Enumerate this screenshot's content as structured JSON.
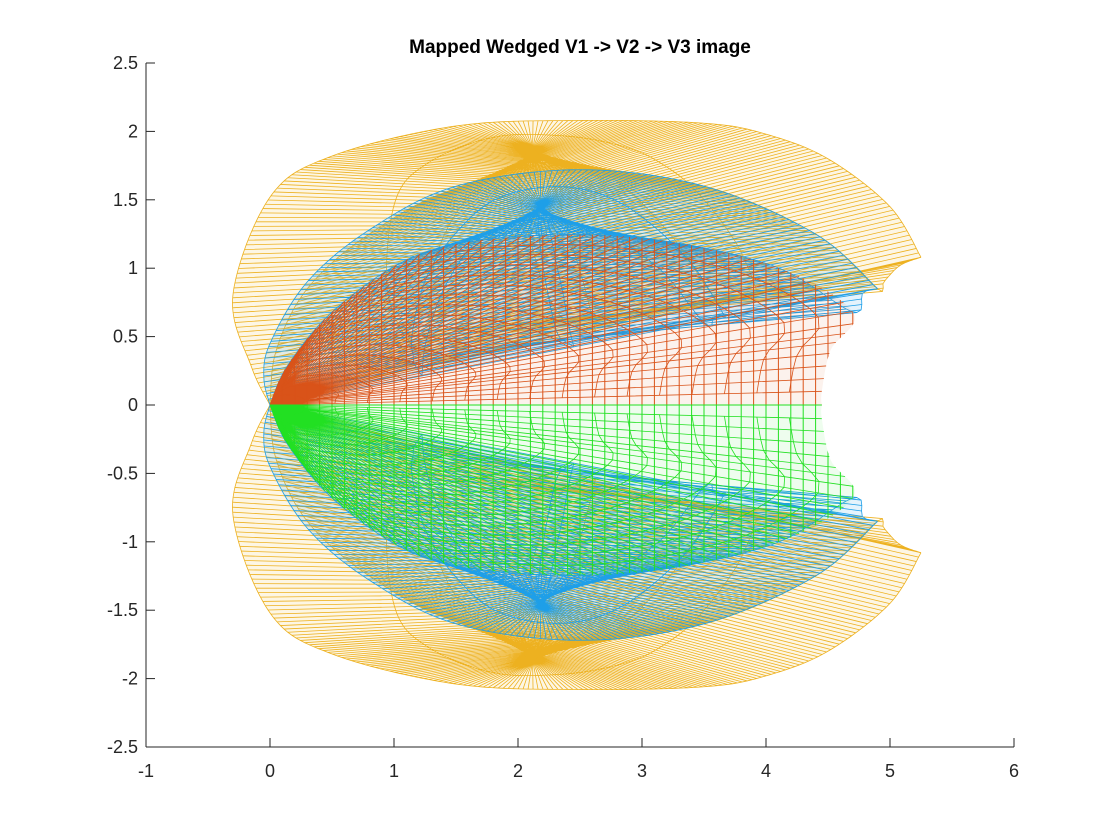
{
  "chart_data": {
    "type": "line",
    "title": "Mapped Wedged V1 -> V2 -> V3 image",
    "xlabel": "",
    "ylabel": "",
    "xlim": [
      -1,
      6
    ],
    "ylim": [
      -2.5,
      2.5
    ],
    "xticks": [
      "-1",
      "0",
      "1",
      "2",
      "3",
      "4",
      "5",
      "6"
    ],
    "yticks": [
      "-2.5",
      "-2",
      "-1.5",
      "-1",
      "-0.5",
      "0",
      "0.5",
      "1",
      "1.5",
      "2",
      "2.5"
    ],
    "grid": false,
    "colors": {
      "orange": "#EDB120",
      "blue": "#1E9FE8",
      "red": "#D95319",
      "green": "#22E022",
      "axis": "#262626"
    },
    "series": [
      {
        "color": "orange",
        "region": "outer band (V3)",
        "outer_boundary": [
          [
            5.25,
            1.08
          ],
          [
            5.0,
            1.45
          ],
          [
            4.5,
            1.8
          ],
          [
            4.0,
            1.98
          ],
          [
            3.5,
            2.06
          ],
          [
            2.5,
            2.08
          ],
          [
            1.5,
            2.04
          ],
          [
            0.5,
            1.82
          ],
          [
            0.0,
            1.52
          ],
          [
            -0.3,
            0.8
          ],
          [
            -0.15,
            0.28
          ],
          [
            0.0,
            0.0
          ]
        ],
        "inner_boundary": [
          [
            5.25,
            1.08
          ],
          [
            5.08,
            1.02
          ],
          [
            4.95,
            0.9
          ],
          [
            4.9,
            0.85
          ],
          [
            4.4,
            1.25
          ],
          [
            3.5,
            1.6
          ],
          [
            2.5,
            1.7
          ],
          [
            1.5,
            1.58
          ],
          [
            0.8,
            1.25
          ],
          [
            0.3,
            0.85
          ],
          [
            0.05,
            0.4
          ],
          [
            0.0,
            0.0
          ]
        ]
      },
      {
        "color": "blue",
        "region": "middle band (V2)",
        "outer_boundary": [
          [
            4.9,
            0.85
          ],
          [
            4.4,
            1.25
          ],
          [
            3.5,
            1.6
          ],
          [
            2.5,
            1.72
          ],
          [
            1.5,
            1.6
          ],
          [
            0.8,
            1.28
          ],
          [
            0.3,
            0.9
          ],
          [
            0.0,
            0.45
          ],
          [
            -0.05,
            0.2
          ],
          [
            0.0,
            0.0
          ]
        ],
        "inner_boundary": [
          [
            4.9,
            0.85
          ],
          [
            4.78,
            0.82
          ],
          [
            4.7,
            0.68
          ],
          [
            4.05,
            1.02
          ],
          [
            3.0,
            1.22
          ],
          [
            2.0,
            1.23
          ],
          [
            1.2,
            1.1
          ],
          [
            0.55,
            0.72
          ],
          [
            0.15,
            0.3
          ],
          [
            0.0,
            0.0
          ]
        ]
      },
      {
        "color": "red",
        "region": "upper inner region (V1, y >= 0)",
        "outer_boundary": [
          [
            0.0,
            0.0
          ],
          [
            0.15,
            0.3
          ],
          [
            0.55,
            0.72
          ],
          [
            1.2,
            1.1
          ],
          [
            2.0,
            1.23
          ],
          [
            3.0,
            1.22
          ],
          [
            4.05,
            1.02
          ],
          [
            4.7,
            0.68
          ]
        ],
        "inner_boundary": [
          [
            4.7,
            0.68
          ],
          [
            4.52,
            0.4
          ],
          [
            4.45,
            0.1
          ],
          [
            4.45,
            0.0
          ],
          [
            0.0,
            0.0
          ]
        ]
      },
      {
        "color": "green",
        "region": "lower inner region (V1, y <= 0)",
        "outer_boundary": [
          [
            0.0,
            0.0
          ],
          [
            0.15,
            -0.3
          ],
          [
            0.55,
            -0.72
          ],
          [
            1.2,
            -1.1
          ],
          [
            2.0,
            -1.23
          ],
          [
            3.0,
            -1.22
          ],
          [
            4.05,
            -1.02
          ],
          [
            4.7,
            -0.68
          ]
        ],
        "inner_boundary": [
          [
            4.7,
            -0.68
          ],
          [
            4.52,
            -0.4
          ],
          [
            4.45,
            -0.1
          ],
          [
            4.45,
            0.0
          ],
          [
            0.0,
            0.0
          ]
        ]
      }
    ]
  }
}
